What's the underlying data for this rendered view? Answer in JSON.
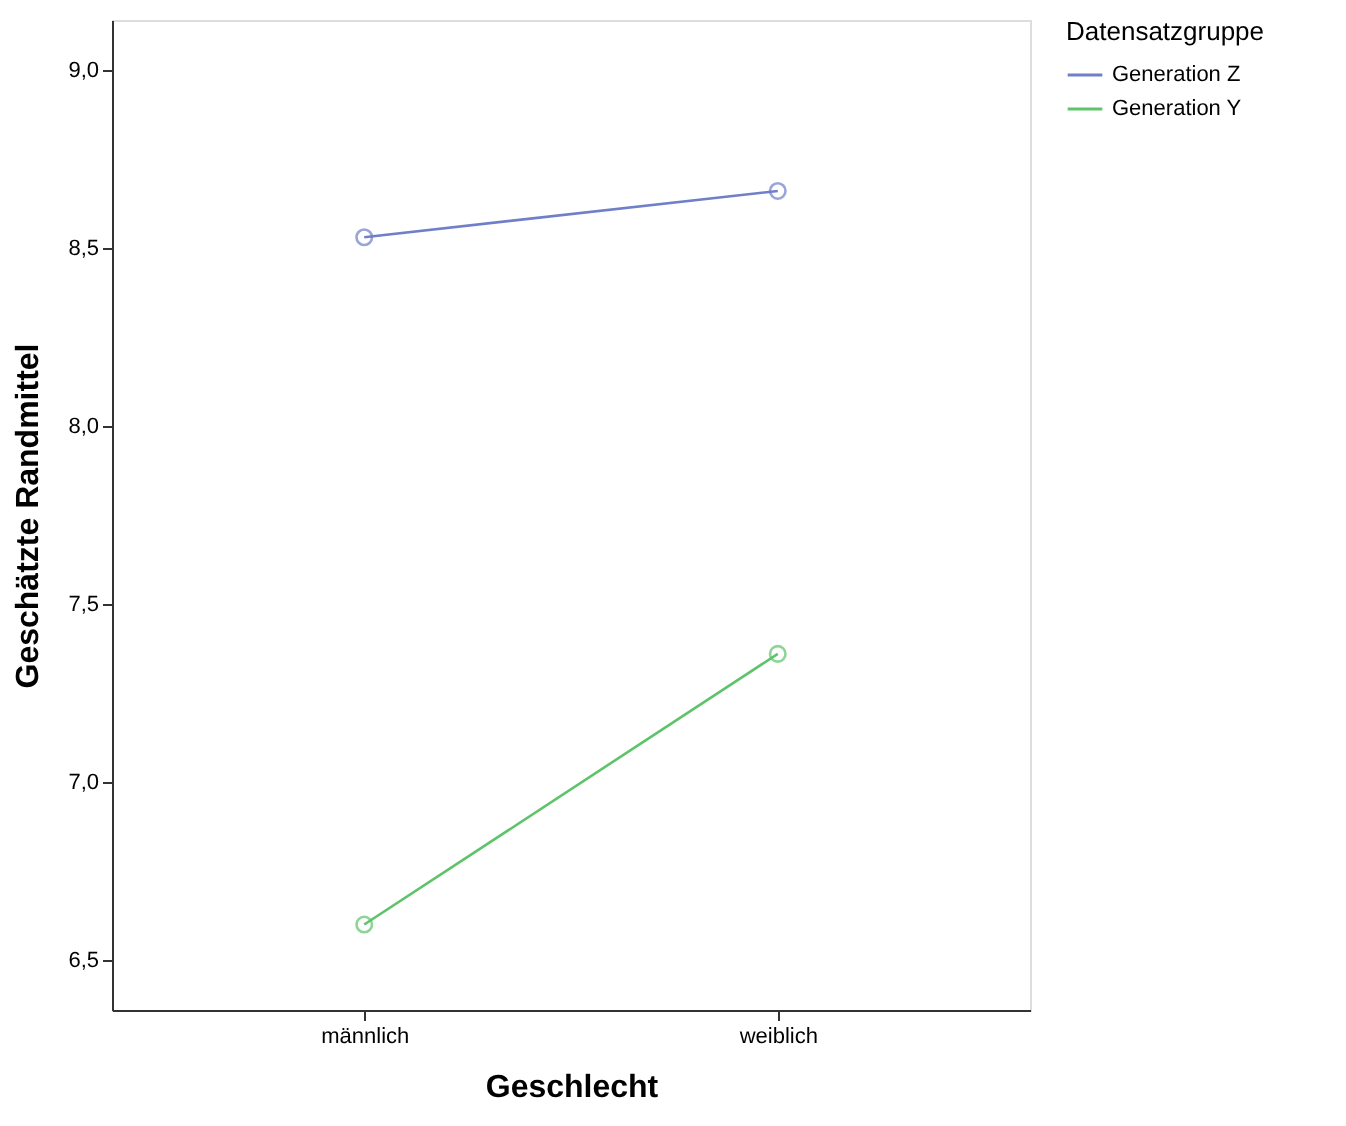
{
  "chart_data": {
    "type": "line",
    "xlabel": "Geschlecht",
    "ylabel": "Geschätzte Randmittel",
    "legend_title": "Datensatzgruppe",
    "categories": [
      "männlich",
      "weiblich"
    ],
    "series": [
      {
        "name": "Generation Z",
        "color": "#6f7fc8",
        "values": [
          8.53,
          8.66
        ]
      },
      {
        "name": "Generation Y",
        "color": "#5ec36a",
        "values": [
          6.6,
          7.36
        ]
      }
    ],
    "ylim": [
      6.36,
      9.14
    ],
    "yticks": [
      {
        "value": 6.5,
        "label": "6,5"
      },
      {
        "value": 7.0,
        "label": "7,0"
      },
      {
        "value": 7.5,
        "label": "7,5"
      },
      {
        "value": 8.0,
        "label": "8,0"
      },
      {
        "value": 8.5,
        "label": "8,5"
      },
      {
        "value": 9.0,
        "label": "9,0"
      }
    ],
    "grid": false,
    "legend": "top right",
    "marker": "circle",
    "line_style": "solid"
  }
}
